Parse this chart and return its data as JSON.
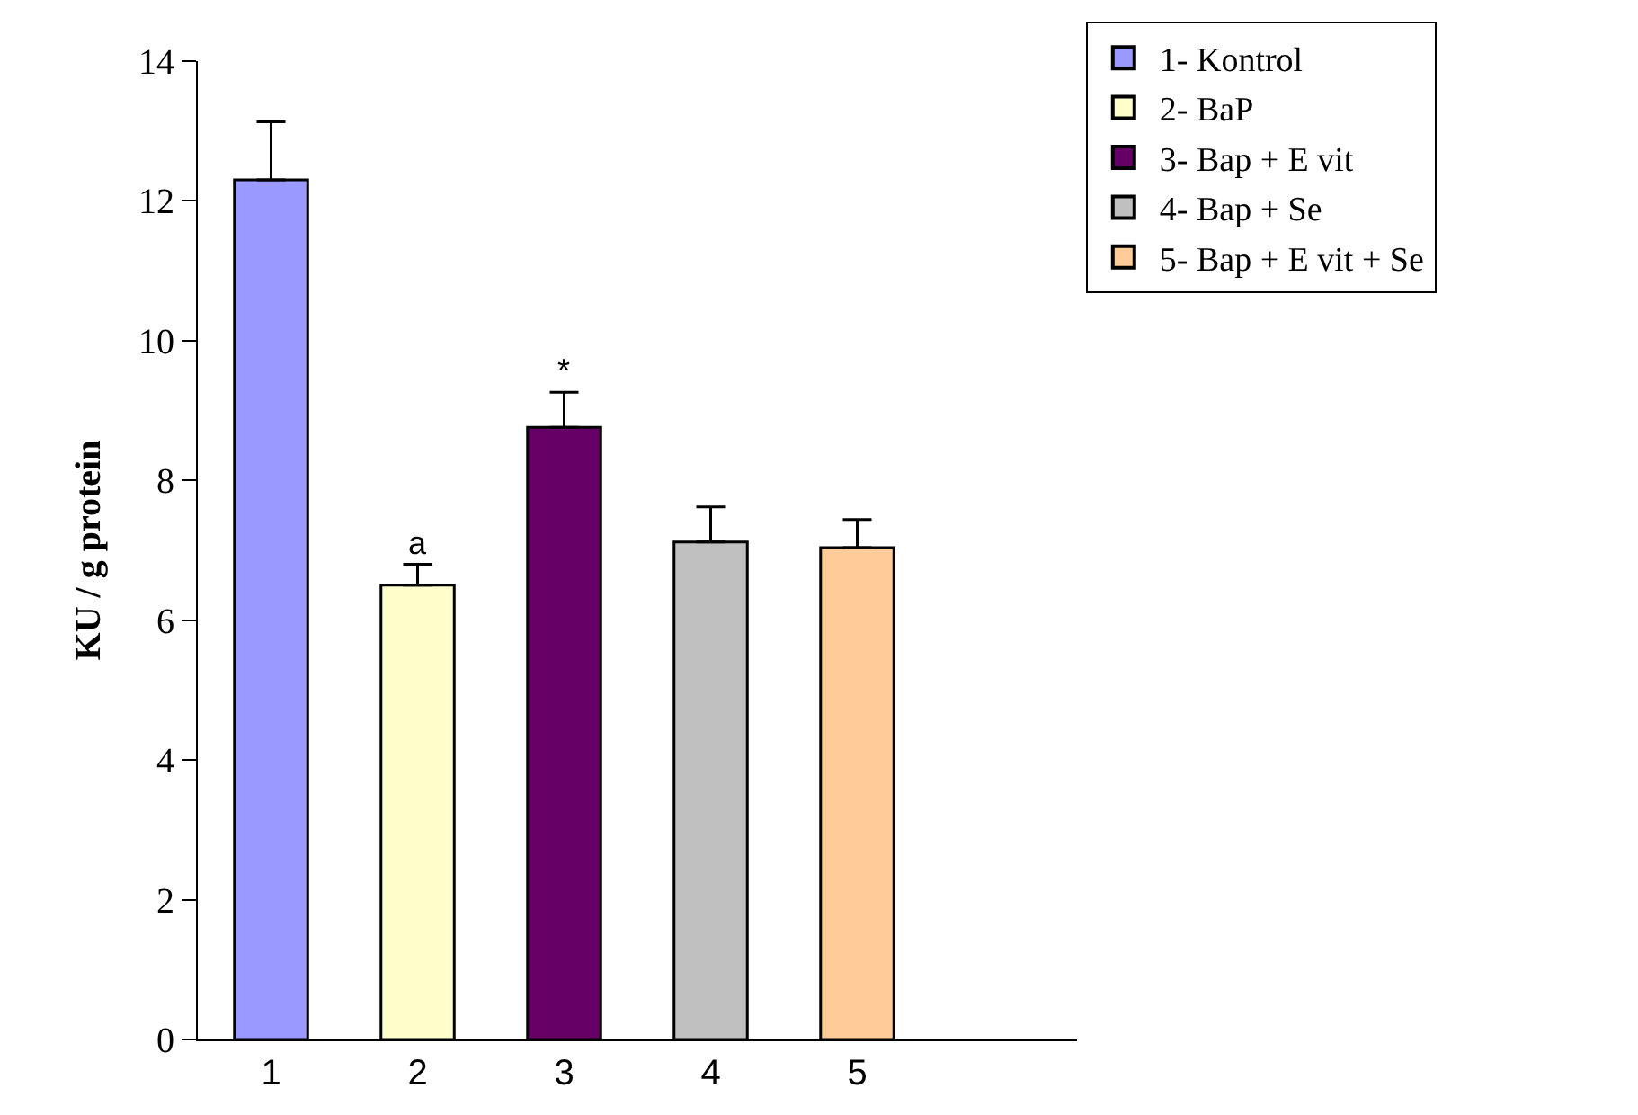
{
  "chart_data": {
    "type": "bar",
    "ylabel": "KU / g protein",
    "categories": [
      "1",
      "2",
      "3",
      "4",
      "5"
    ],
    "series": [
      {
        "name": "1- Kontrol",
        "color": "#9999ff",
        "values": [
          12.3,
          null,
          null,
          null,
          null
        ],
        "errors": [
          0.83,
          null,
          null,
          null,
          null
        ]
      },
      {
        "name": "2- BaP",
        "color": "#ffffcc",
        "values": [
          null,
          6.5,
          null,
          null,
          null
        ],
        "errors": [
          null,
          0.3,
          null,
          null,
          null
        ]
      },
      {
        "name": "3- Bap + E vit",
        "color": "#660066",
        "values": [
          null,
          null,
          8.76,
          null,
          null
        ],
        "errors": [
          null,
          null,
          0.5,
          null,
          null
        ]
      },
      {
        "name": "4- Bap + Se",
        "color": "#c0c0c0",
        "values": [
          null,
          null,
          null,
          7.12,
          null
        ],
        "errors": [
          null,
          null,
          null,
          0.5,
          null
        ]
      },
      {
        "name": "5- Bap + E vit + Se",
        "color": "#ffcc99",
        "values": [
          null,
          null,
          null,
          null,
          7.04
        ],
        "errors": [
          null,
          null,
          null,
          null,
          0.4
        ]
      }
    ],
    "annotations": [
      {
        "text": "a",
        "x": "2",
        "y": 6.8
      },
      {
        "text": "*",
        "x": "3",
        "y": 9.26
      }
    ],
    "ylim": [
      0,
      14
    ],
    "yticks": [
      0,
      2,
      4,
      6,
      8,
      10,
      12,
      14
    ],
    "legend": "top right"
  }
}
